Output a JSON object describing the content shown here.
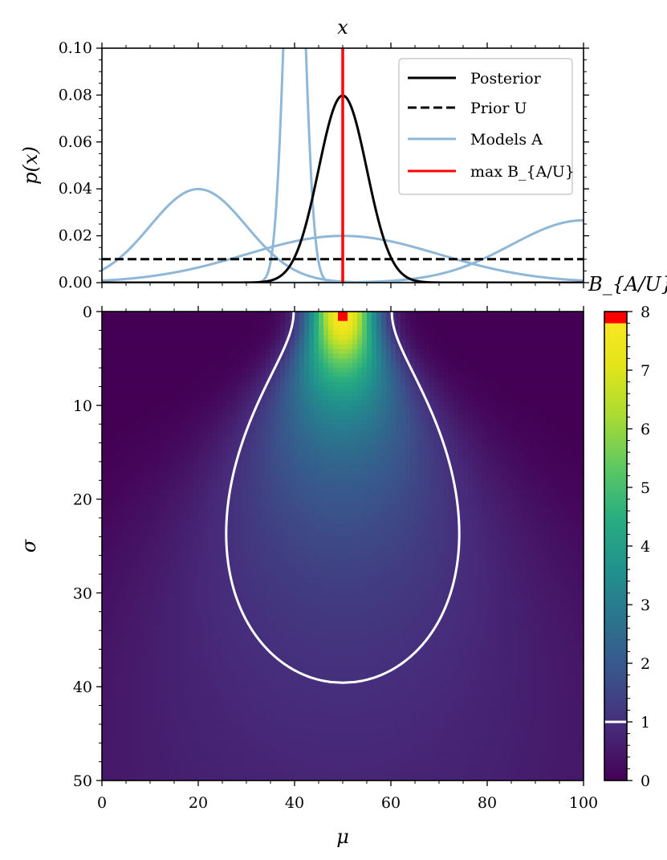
{
  "chart_data": [
    {
      "type": "line",
      "title": "",
      "xlabel": "x",
      "ylabel": "p(x)",
      "xlim": [
        0,
        100
      ],
      "ylim": [
        0,
        0.1
      ],
      "x_axis_position": "top",
      "xtick_labels_shown": false,
      "yticks": [
        "0.00",
        "0.02",
        "0.04",
        "0.06",
        "0.08",
        "0.10"
      ],
      "legend_position": "top-right",
      "series": [
        {
          "name": "Posterior",
          "kind": "gaussian",
          "mu": 50,
          "sigma": 5,
          "color": "#000000",
          "style": "solid"
        },
        {
          "name": "Prior U",
          "kind": "constant",
          "value": 0.01,
          "color": "#000000",
          "style": "dashed"
        },
        {
          "name": "Models A",
          "kind": "gaussian-family",
          "color": "#8fb8d8",
          "style": "solid",
          "members": [
            {
              "mu": 20,
              "sigma": 10
            },
            {
              "mu": 40,
              "sigma": 2
            },
            {
              "mu": 50,
              "sigma": 20
            },
            {
              "mu": 100,
              "sigma": 15
            }
          ]
        },
        {
          "name": "max B_{A/U}",
          "kind": "vertical",
          "x": 50,
          "color": "#ff0000",
          "style": "solid"
        }
      ]
    },
    {
      "type": "heatmap",
      "title": "",
      "xlabel": "μ",
      "ylabel": "σ",
      "xlim": [
        0,
        100
      ],
      "ylim": [
        50,
        0
      ],
      "xticks": [
        "0",
        "20",
        "40",
        "60",
        "80",
        "100"
      ],
      "yticks": [
        "0",
        "10",
        "20",
        "30",
        "40",
        "50"
      ],
      "colormap": "viridis",
      "colorbar": {
        "label": "B_{A/U}",
        "min": 0,
        "max": 8,
        "ticks": [
          "0",
          "1",
          "2",
          "3",
          "4",
          "5",
          "6",
          "7",
          "8"
        ],
        "highlight_over": 7.8,
        "highlight_color": "#ff0000"
      },
      "contour": {
        "level": 1,
        "color": "#ffffff"
      },
      "max_marker": {
        "mu": 50,
        "sigma": 0,
        "color": "#ff0000"
      }
    }
  ]
}
